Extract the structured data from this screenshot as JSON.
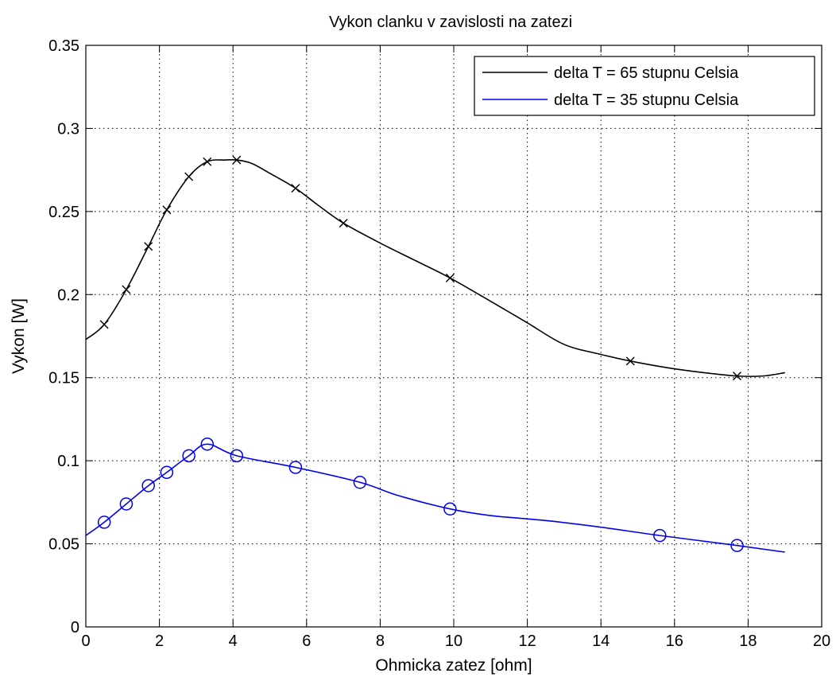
{
  "chart_data": {
    "type": "line",
    "title": "Vykon clanku v zavislosti na zatezi",
    "xlabel": "Ohmicka zatez [ohm]",
    "ylabel": "Vykon [W]",
    "xlim": [
      0,
      20
    ],
    "ylim": [
      0,
      0.35
    ],
    "xticks": [
      0,
      2,
      4,
      6,
      8,
      10,
      12,
      14,
      16,
      18,
      20
    ],
    "yticks": [
      0,
      0.05,
      0.1,
      0.15,
      0.2,
      0.25,
      0.3,
      0.35
    ],
    "xtick_labels": [
      "0",
      "2",
      "4",
      "6",
      "8",
      "10",
      "12",
      "14",
      "16",
      "18",
      "20"
    ],
    "ytick_labels": [
      "0",
      "0.05",
      "0.1",
      "0.15",
      "0.2",
      "0.25",
      "0.3",
      "0.35"
    ],
    "grid": true,
    "legend_position": "top-right",
    "series": [
      {
        "name": "delta T = 65 stupnu Celsia",
        "color": "#000000",
        "marker": "x",
        "x": [
          0.5,
          1.1,
          1.7,
          2.2,
          2.8,
          3.3,
          4.1,
          5.7,
          7.0,
          9.9,
          14.8,
          17.7
        ],
        "y": [
          0.182,
          0.203,
          0.229,
          0.251,
          0.271,
          0.28,
          0.281,
          0.264,
          0.243,
          0.21,
          0.16,
          0.151
        ],
        "curve_x": [
          0,
          0.5,
          1.1,
          1.7,
          2.2,
          2.8,
          3.3,
          3.8,
          4.1,
          4.5,
          5.0,
          5.7,
          6.3,
          7.0,
          8.0,
          9.0,
          9.9,
          11.0,
          12.0,
          13.0,
          14.0,
          14.8,
          15.8,
          16.8,
          17.7,
          18.4,
          19.0
        ],
        "curve_y": [
          0.173,
          0.182,
          0.203,
          0.229,
          0.251,
          0.271,
          0.28,
          0.281,
          0.281,
          0.279,
          0.273,
          0.264,
          0.254,
          0.243,
          0.231,
          0.22,
          0.21,
          0.196,
          0.183,
          0.17,
          0.164,
          0.16,
          0.156,
          0.153,
          0.151,
          0.151,
          0.153
        ]
      },
      {
        "name": "delta T = 35 stupnu Celsia",
        "color": "#0000ee",
        "marker": "o",
        "x": [
          0.5,
          1.1,
          1.7,
          2.2,
          2.8,
          3.3,
          4.1,
          5.7,
          7.45,
          9.9,
          15.6,
          17.7
        ],
        "y": [
          0.063,
          0.074,
          0.085,
          0.093,
          0.103,
          0.11,
          0.103,
          0.096,
          0.087,
          0.071,
          0.055,
          0.049
        ],
        "curve_x": [
          0,
          0.5,
          1.1,
          1.7,
          2.2,
          2.8,
          3.3,
          4.1,
          5.7,
          7.45,
          8.5,
          9.9,
          11.0,
          12.5,
          14.0,
          15.6,
          17.7,
          19.0
        ],
        "curve_y": [
          0.055,
          0.063,
          0.074,
          0.085,
          0.093,
          0.103,
          0.11,
          0.103,
          0.096,
          0.087,
          0.079,
          0.071,
          0.067,
          0.064,
          0.06,
          0.055,
          0.049,
          0.045
        ]
      }
    ]
  }
}
